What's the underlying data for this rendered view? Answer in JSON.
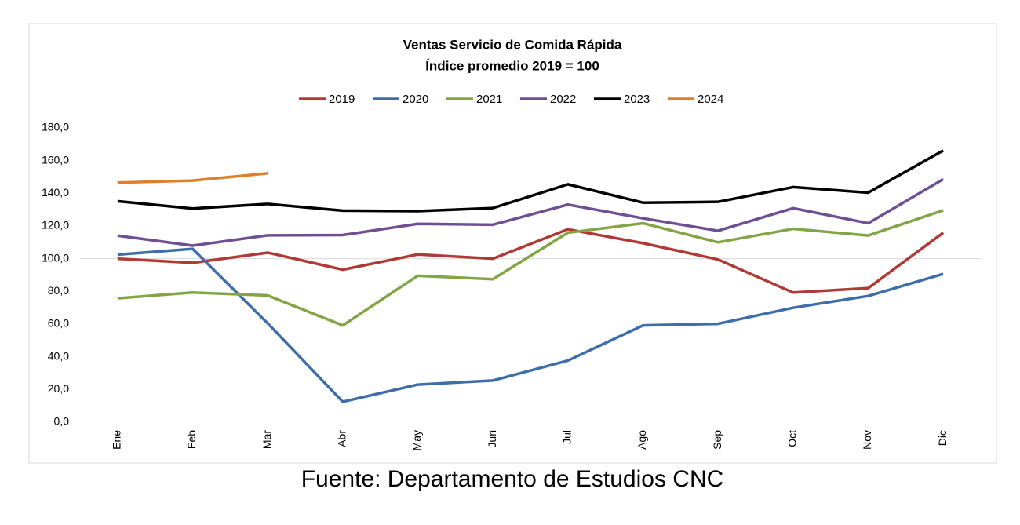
{
  "chart_data": {
    "type": "line",
    "title": [
      "Ventas Servicio de Comida Rápida",
      "Índice promedio 2019 = 100"
    ],
    "source": "Fuente: Departamento de Estudios CNC",
    "categories": [
      "Ene",
      "Feb",
      "Mar",
      "Abr",
      "May",
      "Jun",
      "Jul",
      "Ago",
      "Sep",
      "Oct",
      "Nov",
      "Dic"
    ],
    "series": [
      {
        "name": "2019",
        "color": "#b03a36",
        "values": [
          100,
          97.5,
          103.7,
          93.3,
          102.6,
          100,
          118,
          109.5,
          99.5,
          79.3,
          82,
          115.9
        ]
      },
      {
        "name": "2020",
        "color": "#3e6ea9",
        "values": [
          102.5,
          106,
          60.5,
          12.5,
          23,
          25.5,
          37.7,
          59.2,
          60.2,
          70,
          77.2,
          90.7
        ]
      },
      {
        "name": "2021",
        "color": "#83a545",
        "values": [
          75.8,
          79.3,
          77.5,
          59.2,
          89.6,
          87.5,
          115.9,
          121.7,
          110,
          118.3,
          114.2,
          129.6
        ]
      },
      {
        "name": "2022",
        "color": "#6f4f93",
        "values": [
          114.1,
          108,
          114.3,
          114.5,
          121.3,
          120.8,
          133.1,
          124.7,
          117.1,
          130.9,
          121.7,
          148.6
        ]
      },
      {
        "name": "2023",
        "color": "#000000",
        "values": [
          135.2,
          130.7,
          133.5,
          129.4,
          129.1,
          131,
          145.5,
          134.3,
          134.8,
          143.8,
          140.4,
          166.2
        ]
      },
      {
        "name": "2024",
        "color": "#e07f2b",
        "values": [
          146.5,
          147.8,
          152.2,
          null,
          null,
          null,
          null,
          null,
          null,
          null,
          null,
          null
        ]
      }
    ],
    "ylim": [
      0,
      180
    ],
    "yticks": [
      {
        "value": 0,
        "label": "0,0"
      },
      {
        "value": 20,
        "label": "20,0"
      },
      {
        "value": 40,
        "label": "40,0"
      },
      {
        "value": 60,
        "label": "60,0"
      },
      {
        "value": 80,
        "label": "80,0"
      },
      {
        "value": 100,
        "label": "100,0"
      },
      {
        "value": 120,
        "label": "120,0"
      },
      {
        "value": 140,
        "label": "140,0"
      },
      {
        "value": 160,
        "label": "160,0"
      },
      {
        "value": 180,
        "label": "180,0"
      }
    ],
    "reference_line": 100,
    "legend": "top"
  }
}
